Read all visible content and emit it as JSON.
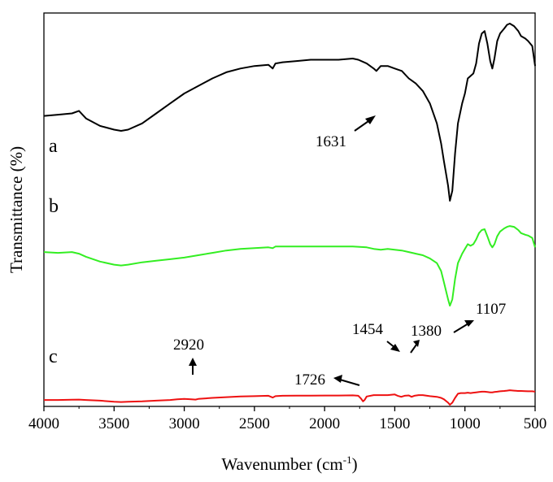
{
  "chart_data": {
    "type": "line",
    "title": "",
    "xlabel_main": "Wavenumber (cm",
    "xlabel_sup": "-1",
    "xlabel_tail": ")",
    "ylabel": "Transmittance (%)",
    "xlim": [
      4000,
      500
    ],
    "x_reversed": true,
    "x_ticks": [
      4000,
      3500,
      3000,
      2500,
      2000,
      1500,
      1000,
      500
    ],
    "x_tick_labels": [
      "4000",
      "3500",
      "3000",
      "2500",
      "2000",
      "1500",
      "1000",
      "500"
    ],
    "y_tick_labels_shown": false,
    "ylim": [
      0,
      100
    ],
    "series": [
      {
        "name": "a",
        "color": "#000000",
        "points": [
          [
            4000,
            63
          ],
          [
            3900,
            63.5
          ],
          [
            3800,
            64
          ],
          [
            3750,
            65
          ],
          [
            3700,
            62
          ],
          [
            3600,
            59
          ],
          [
            3500,
            57.5
          ],
          [
            3450,
            57
          ],
          [
            3400,
            57.5
          ],
          [
            3300,
            60
          ],
          [
            3200,
            64
          ],
          [
            3100,
            68
          ],
          [
            3000,
            72
          ],
          [
            2900,
            75
          ],
          [
            2800,
            78
          ],
          [
            2700,
            80.5
          ],
          [
            2600,
            82
          ],
          [
            2500,
            83
          ],
          [
            2400,
            83.5
          ],
          [
            2370,
            82
          ],
          [
            2350,
            84
          ],
          [
            2300,
            84.5
          ],
          [
            2200,
            85
          ],
          [
            2100,
            85.5
          ],
          [
            2000,
            85.5
          ],
          [
            1900,
            85.5
          ],
          [
            1800,
            86
          ],
          [
            1760,
            85.5
          ],
          [
            1700,
            84
          ],
          [
            1650,
            82
          ],
          [
            1631,
            81
          ],
          [
            1600,
            83
          ],
          [
            1550,
            83
          ],
          [
            1500,
            82
          ],
          [
            1450,
            81
          ],
          [
            1400,
            78
          ],
          [
            1350,
            76
          ],
          [
            1300,
            73
          ],
          [
            1250,
            68
          ],
          [
            1200,
            60
          ],
          [
            1170,
            52
          ],
          [
            1150,
            45
          ],
          [
            1120,
            35
          ],
          [
            1107,
            29
          ],
          [
            1090,
            33
          ],
          [
            1070,
            48
          ],
          [
            1050,
            60
          ],
          [
            1020,
            68
          ],
          [
            1000,
            72
          ],
          [
            980,
            78
          ],
          [
            960,
            79
          ],
          [
            940,
            80
          ],
          [
            920,
            84
          ],
          [
            900,
            92
          ],
          [
            880,
            96
          ],
          [
            860,
            97
          ],
          [
            840,
            92
          ],
          [
            820,
            85
          ],
          [
            805,
            82
          ],
          [
            790,
            86
          ],
          [
            770,
            93
          ],
          [
            750,
            96
          ],
          [
            720,
            98
          ],
          [
            700,
            99.5
          ],
          [
            680,
            100
          ],
          [
            650,
            99
          ],
          [
            620,
            97
          ],
          [
            600,
            95
          ],
          [
            570,
            94
          ],
          [
            550,
            93
          ],
          [
            520,
            91
          ],
          [
            500,
            83
          ]
        ]
      },
      {
        "name": "b",
        "color": "#33ee22",
        "points": [
          [
            4000,
            52
          ],
          [
            3900,
            51.5
          ],
          [
            3800,
            52
          ],
          [
            3750,
            51
          ],
          [
            3700,
            49
          ],
          [
            3600,
            46
          ],
          [
            3500,
            44
          ],
          [
            3450,
            43.5
          ],
          [
            3400,
            44
          ],
          [
            3300,
            45.5
          ],
          [
            3200,
            46.5
          ],
          [
            3100,
            47.5
          ],
          [
            3000,
            48.5
          ],
          [
            2900,
            50
          ],
          [
            2800,
            51.5
          ],
          [
            2700,
            53
          ],
          [
            2600,
            54
          ],
          [
            2500,
            54.5
          ],
          [
            2400,
            55
          ],
          [
            2370,
            54.5
          ],
          [
            2350,
            55.5
          ],
          [
            2300,
            55.5
          ],
          [
            2200,
            55.5
          ],
          [
            2100,
            55.5
          ],
          [
            2000,
            55.5
          ],
          [
            1900,
            55.5
          ],
          [
            1800,
            55.5
          ],
          [
            1700,
            55
          ],
          [
            1650,
            54
          ],
          [
            1600,
            53.5
          ],
          [
            1550,
            54
          ],
          [
            1500,
            53.5
          ],
          [
            1450,
            53
          ],
          [
            1400,
            52
          ],
          [
            1350,
            51
          ],
          [
            1300,
            50
          ],
          [
            1250,
            48
          ],
          [
            1200,
            45
          ],
          [
            1170,
            40
          ],
          [
            1150,
            33
          ],
          [
            1120,
            22
          ],
          [
            1107,
            18
          ],
          [
            1090,
            22
          ],
          [
            1070,
            35
          ],
          [
            1050,
            45
          ],
          [
            1020,
            51
          ],
          [
            1000,
            54
          ],
          [
            980,
            57
          ],
          [
            960,
            56
          ],
          [
            940,
            57
          ],
          [
            920,
            60
          ],
          [
            900,
            64
          ],
          [
            880,
            66
          ],
          [
            860,
            66.5
          ],
          [
            840,
            62
          ],
          [
            820,
            57
          ],
          [
            805,
            55
          ],
          [
            790,
            57
          ],
          [
            770,
            62
          ],
          [
            750,
            65
          ],
          [
            720,
            67
          ],
          [
            700,
            68
          ],
          [
            680,
            68.5
          ],
          [
            650,
            68
          ],
          [
            620,
            66
          ],
          [
            600,
            64
          ],
          [
            570,
            63
          ],
          [
            550,
            62.5
          ],
          [
            520,
            61
          ],
          [
            500,
            55
          ]
        ]
      },
      {
        "name": "c",
        "color": "#ee1111",
        "points": [
          [
            4000,
            7
          ],
          [
            3900,
            7
          ],
          [
            3800,
            7.3
          ],
          [
            3750,
            7.5
          ],
          [
            3700,
            7
          ],
          [
            3600,
            6
          ],
          [
            3500,
            4.5
          ],
          [
            3450,
            4
          ],
          [
            3400,
            4.3
          ],
          [
            3300,
            5
          ],
          [
            3200,
            6
          ],
          [
            3100,
            7
          ],
          [
            3050,
            8
          ],
          [
            3000,
            8.5
          ],
          [
            2950,
            8
          ],
          [
            2920,
            7.5
          ],
          [
            2900,
            8.5
          ],
          [
            2800,
            10
          ],
          [
            2700,
            11
          ],
          [
            2600,
            12
          ],
          [
            2500,
            12.5
          ],
          [
            2400,
            13
          ],
          [
            2370,
            10.5
          ],
          [
            2350,
            12.5
          ],
          [
            2300,
            13
          ],
          [
            2200,
            13.2
          ],
          [
            2100,
            13.3
          ],
          [
            2000,
            13.4
          ],
          [
            1900,
            13.4
          ],
          [
            1800,
            13.6
          ],
          [
            1760,
            13
          ],
          [
            1740,
            9
          ],
          [
            1726,
            5
          ],
          [
            1715,
            7
          ],
          [
            1700,
            12
          ],
          [
            1650,
            14
          ],
          [
            1600,
            14
          ],
          [
            1550,
            14
          ],
          [
            1500,
            15
          ],
          [
            1480,
            13
          ],
          [
            1454,
            11.5
          ],
          [
            1430,
            13
          ],
          [
            1400,
            13.5
          ],
          [
            1380,
            11.5
          ],
          [
            1360,
            13
          ],
          [
            1330,
            14
          ],
          [
            1300,
            14
          ],
          [
            1250,
            12.5
          ],
          [
            1200,
            11.5
          ],
          [
            1170,
            10
          ],
          [
            1150,
            8
          ],
          [
            1120,
            3
          ],
          [
            1107,
            0
          ],
          [
            1090,
            3
          ],
          [
            1070,
            10
          ],
          [
            1050,
            16
          ],
          [
            1030,
            17
          ],
          [
            1000,
            17
          ],
          [
            980,
            17.5
          ],
          [
            960,
            17
          ],
          [
            940,
            17.5
          ],
          [
            920,
            18
          ],
          [
            900,
            18.5
          ],
          [
            880,
            19
          ],
          [
            860,
            19
          ],
          [
            840,
            18.5
          ],
          [
            820,
            18
          ],
          [
            805,
            18
          ],
          [
            790,
            18.5
          ],
          [
            770,
            19
          ],
          [
            750,
            19.5
          ],
          [
            720,
            20
          ],
          [
            700,
            20.5
          ],
          [
            680,
            21
          ],
          [
            650,
            20.5
          ],
          [
            620,
            20
          ],
          [
            600,
            20
          ],
          [
            570,
            19.8
          ],
          [
            550,
            19.5
          ],
          [
            520,
            19.5
          ],
          [
            500,
            19
          ]
        ]
      }
    ],
    "series_labels": [
      "a",
      "b",
      "c"
    ],
    "annotations": [
      {
        "text": "1631",
        "series": "a"
      },
      {
        "text": "2920",
        "series": "c"
      },
      {
        "text": "1454",
        "series": "c"
      },
      {
        "text": "1380",
        "series": "c"
      },
      {
        "text": "1107",
        "series": "c"
      },
      {
        "text": "1726",
        "series": "c"
      }
    ]
  }
}
